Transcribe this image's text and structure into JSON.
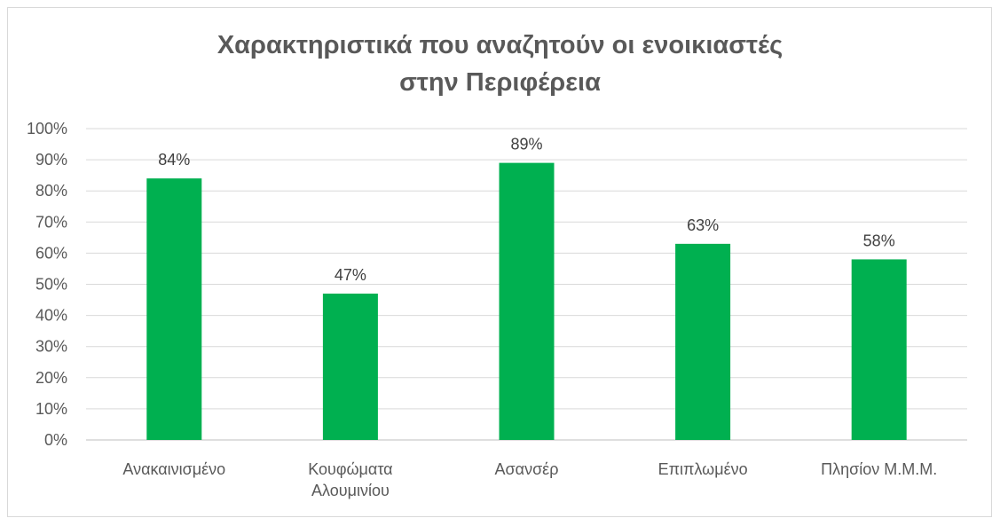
{
  "chart_data": {
    "type": "bar",
    "title_lines": [
      "Χαρακτηριστικά που αναζητούν οι ενοικιαστές",
      "στην Περιφέρεια"
    ],
    "categories": [
      [
        "Ανακαινισμένο"
      ],
      [
        "Κουφώματα",
        "Αλουμινίου"
      ],
      [
        "Ασανσέρ"
      ],
      [
        "Επιπλωμένο"
      ],
      [
        "Πλησίον Μ.Μ.Μ."
      ]
    ],
    "values": [
      84,
      47,
      89,
      63,
      58
    ],
    "data_labels": [
      "84%",
      "47%",
      "89%",
      "63%",
      "58%"
    ],
    "yticks": [
      "0%",
      "10%",
      "20%",
      "30%",
      "40%",
      "50%",
      "60%",
      "70%",
      "80%",
      "90%",
      "100%"
    ],
    "ylim": [
      0,
      100
    ],
    "grid": true,
    "bar_color": "#00b050",
    "xlabel": "",
    "ylabel": ""
  }
}
